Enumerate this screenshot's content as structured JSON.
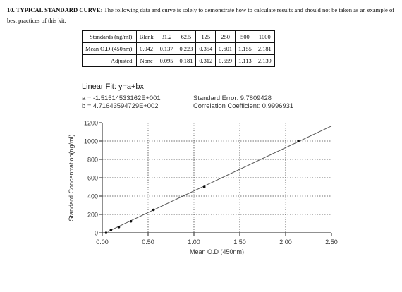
{
  "heading": {
    "lead": "10. TYPICAL STANDARD CURVE:",
    "body": "The following data and curve is solely to demonstrate how to calculate results and should not be taken as an example of best practices of this kit."
  },
  "table": {
    "rows": [
      {
        "label": "Standards (ng/ml):",
        "cells": [
          "Blank",
          "31.2",
          "62.5",
          "125",
          "250",
          "500",
          "1000"
        ]
      },
      {
        "label": "Mean O.D.(450nm):",
        "cells": [
          "0.042",
          "0.137",
          "0.223",
          "0.354",
          "0.601",
          "1.155",
          "2.181"
        ]
      },
      {
        "label": "Adjusted:",
        "cells": [
          "None",
          "0.095",
          "0.181",
          "0.312",
          "0.559",
          "1.113",
          "2.139"
        ]
      }
    ]
  },
  "fit": {
    "title": "Linear Fit: y=a+bx",
    "a": "a = -1.51514533162E+001",
    "b": "b = 4.71643594729E+002",
    "standard_error": "Standard Error: 9.7809428",
    "correlation": "Correlation Coefficient: 0.9996931"
  },
  "chart_data": {
    "type": "scatter",
    "xlabel": "Mean O.D (450nm)",
    "ylabel": "Standard Concentration(ng/ml)",
    "xlim": [
      0,
      2.5
    ],
    "ylim": [
      0,
      1200
    ],
    "x_ticks": [
      0,
      0.5,
      1.0,
      1.5,
      2.0,
      2.5
    ],
    "x_tick_labels": [
      "0.00",
      "0.50",
      "1.00",
      "1.50",
      "2.00",
      "2.50"
    ],
    "y_ticks": [
      0,
      200,
      400,
      600,
      800,
      1000,
      1200
    ],
    "y_tick_labels": [
      "0",
      "200",
      "400",
      "600",
      "800",
      "1000",
      "1200"
    ],
    "grid": true,
    "points": [
      {
        "x": 0.042,
        "y": 0
      },
      {
        "x": 0.095,
        "y": 31.2
      },
      {
        "x": 0.181,
        "y": 62.5
      },
      {
        "x": 0.312,
        "y": 125
      },
      {
        "x": 0.559,
        "y": 250
      },
      {
        "x": 1.113,
        "y": 500
      },
      {
        "x": 2.139,
        "y": 1000
      }
    ],
    "fit_line": {
      "a": -15.1514533162,
      "b": 471.643594729
    }
  }
}
